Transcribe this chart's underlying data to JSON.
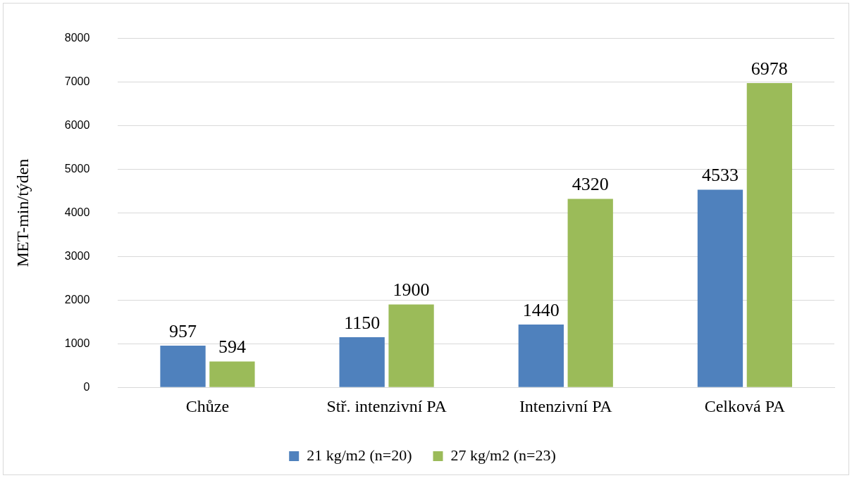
{
  "chart_data": {
    "type": "bar",
    "ylabel": "MET-min/týden",
    "categories": [
      "Chůze",
      "Stř. intenzivní PA",
      "Intenzivní PA",
      "Celková PA"
    ],
    "series": [
      {
        "name": "21 kg/m2 (n=20)",
        "color": "#4f81bd",
        "values": [
          957,
          1150,
          1440,
          4533
        ]
      },
      {
        "name": "27 kg/m2 (n=23)",
        "color": "#9bbb59",
        "values": [
          594,
          1900,
          4320,
          6978
        ]
      }
    ],
    "ylim": [
      0,
      8000
    ],
    "yticks": [
      0,
      1000,
      2000,
      3000,
      4000,
      5000,
      6000,
      7000,
      8000
    ],
    "grid": "y",
    "legend": "bottom",
    "data_labels": true
  }
}
